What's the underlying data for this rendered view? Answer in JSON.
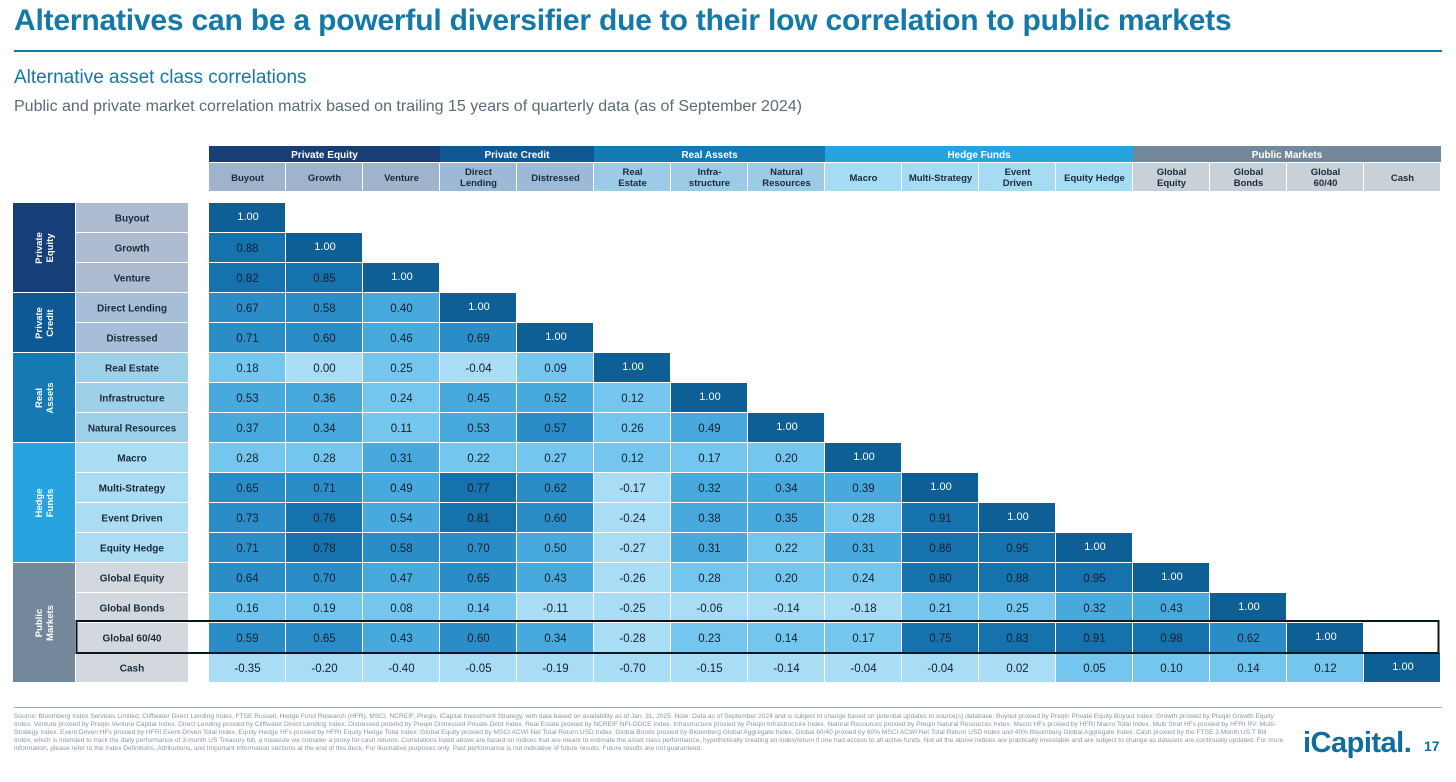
{
  "header": {
    "title": "Alternatives can be a powerful diversifier due to their low correlation to public markets",
    "subtitle": "Alternative asset class correlations",
    "caption": "Public and private market correlation matrix based on trailing 15 years of quarterly data (as of September 2024)"
  },
  "chart_data": {
    "type": "heatmap",
    "title": "",
    "groups": [
      {
        "name": "Private Equity",
        "row_label": [
          "Private",
          "Equity"
        ],
        "color": "#163e78",
        "members": [
          "Buyout",
          "Growth",
          "Venture"
        ]
      },
      {
        "name": "Private Credit",
        "row_label": [
          "Private",
          "Credit"
        ],
        "color": "#0f5896",
        "members": [
          "Direct Lending",
          "Distressed"
        ]
      },
      {
        "name": "Real Assets",
        "row_label": [
          "Real",
          "Assets"
        ],
        "color": "#1579b3",
        "members": [
          "Real Estate",
          "Infrastructure",
          "Natural Resources"
        ]
      },
      {
        "name": "Hedge Funds",
        "row_label": [
          "Hedge",
          "Funds"
        ],
        "color": "#27a3e0",
        "members": [
          "Macro",
          "Multi-Strategy",
          "Event Driven",
          "Equity Hedge"
        ]
      },
      {
        "name": "Public Markets",
        "row_label": [
          "Public",
          "Markets"
        ],
        "color": "#73889a",
        "members": [
          "Global Equity",
          "Global Bonds",
          "Global 60/40",
          "Cash"
        ]
      }
    ],
    "rows": [
      "Buyout",
      "Growth",
      "Venture",
      "Direct Lending",
      "Distressed",
      "Real Estate",
      "Infrastructure",
      "Natural Resources",
      "Macro",
      "Multi-Strategy",
      "Event Driven",
      "Equity Hedge",
      "Global Equity",
      "Global Bonds",
      "Global 60/40",
      "Cash"
    ],
    "column_labels": [
      [
        "Buyout"
      ],
      [
        "Growth"
      ],
      [
        "Venture"
      ],
      [
        "Direct",
        "Lending"
      ],
      [
        "Distressed"
      ],
      [
        "Real",
        "Estate"
      ],
      [
        "Infra-",
        "structure"
      ],
      [
        "Natural",
        "Resources"
      ],
      [
        "Macro"
      ],
      [
        "Multi-Strategy"
      ],
      [
        "Event",
        "Driven"
      ],
      [
        "Equity Hedge"
      ],
      [
        "Global",
        "Equity"
      ],
      [
        "Global",
        "Bonds"
      ],
      [
        "Global",
        "60/40"
      ],
      [
        "Cash"
      ]
    ],
    "values": [
      [
        "1.00"
      ],
      [
        "0.88",
        "1.00"
      ],
      [
        "0.82",
        "0.85",
        "1.00"
      ],
      [
        "0.67",
        "0.58",
        "0.40",
        "1.00"
      ],
      [
        "0.71",
        "0.60",
        "0.46",
        "0.69",
        "1.00"
      ],
      [
        "0.18",
        "0.00",
        "0.25",
        "-0.04",
        "0.09",
        "1.00"
      ],
      [
        "0.53",
        "0.36",
        "0.24",
        "0.45",
        "0.52",
        "0.12",
        "1.00"
      ],
      [
        "0.37",
        "0.34",
        "0.11",
        "0.53",
        "0.57",
        "0.26",
        "0.49",
        "1.00"
      ],
      [
        "0.28",
        "0.28",
        "0.31",
        "0.22",
        "0.27",
        "0.12",
        "0.17",
        "0.20",
        "1.00"
      ],
      [
        "0.65",
        "0.71",
        "0.49",
        "0.77",
        "0.62",
        "-0.17",
        "0.32",
        "0.34",
        "0.39",
        "1.00"
      ],
      [
        "0.73",
        "0.76",
        "0.54",
        "0.81",
        "0.60",
        "-0.24",
        "0.38",
        "0.35",
        "0.28",
        "0.91",
        "1.00"
      ],
      [
        "0.71",
        "0.78",
        "0.58",
        "0.70",
        "0.50",
        "-0.27",
        "0.31",
        "0.22",
        "0.31",
        "0.86",
        "0.95",
        "1.00"
      ],
      [
        "0.64",
        "0.70",
        "0.47",
        "0.65",
        "0.43",
        "-0.26",
        "0.28",
        "0.20",
        "0.24",
        "0.80",
        "0.88",
        "0.95",
        "1.00"
      ],
      [
        "0.16",
        "0.19",
        "0.08",
        "0.14",
        "-0.11",
        "-0.25",
        "-0.06",
        "-0.14",
        "-0.18",
        "0.21",
        "0.25",
        "0.32",
        "0.43",
        "1.00"
      ],
      [
        "0.59",
        "0.65",
        "0.43",
        "0.60",
        "0.34",
        "-0.28",
        "0.23",
        "0.14",
        "0.17",
        "0.75",
        "0.83",
        "0.91",
        "0.98",
        "0.62",
        "1.00"
      ],
      [
        "-0.35",
        "-0.20",
        "-0.40",
        "-0.05",
        "-0.19",
        "-0.70",
        "-0.15",
        "-0.14",
        "-0.04",
        "-0.04",
        "0.02",
        "0.05",
        "0.10",
        "0.14",
        "0.12",
        "1.00"
      ]
    ],
    "highlighted_row": "Global 60/40",
    "color_scale": {
      "diagonal": "#0d5f95",
      "high": "#1572ad",
      "mid_high": "#2b8dc7",
      "mid": "#48a9dc",
      "low": "#74c6ef",
      "lowest": "#a9ddf6"
    }
  },
  "footer": {
    "source_note": "Source: Bloomberg Index Services Limited, Cliffwater Direct Lending Index, FTSE Russell, Hedge Fund Research (HFR), MSCI, NCREIF, Preqin, iCapital Investment Strategy, with data based on availability as of Jan. 31, 2025. Note: Data as of September 2024 and is subject to change based on potential updates to source(s) database. Buyout proxied by Preqin Private Equity Buyout Index. Growth proxied by Preqin Growth Equity Index. Venture proxied by Preqin Venture Capital Index. Direct Lending proxied by Cliffwater Direct Lending Index. Distressed proxied by Preqin Distressed Private Debt Index. Real Estate proxied by NCREIF NFI-ODCE Index. Infrastructure proxied by Preqin Infrastructure Index. Natural Resources proxied by Preqin Natural Resources Index. Macro HFs proxied by HFRI Macro Total Index. Multi Strat HFs proxied by HFRI RV: Multi-Strategy Index. Event Driven HFs proxied by HFRI Event-Driven Total Index. Equity Hedge HFs proxied by HFRI Equity Hedge Total Index. Global Equity proxied by MSCI ACWI Net Total Return USD Index. Global Bonds proxied by Bloomberg Global Aggregate Index. Global 60/40 proxied by 60% MSCI ACWI Net Total Return USD Index and 40% Bloomberg Global Aggregate Index. Cash proxied by the FTSE 3 Month US T Bill Index, which is intended to track the daily performance of 3-month US Treasury bill, a measure we consider a proxy for cash returns. Correlations listed above are based on indices that are meant to estimate the asset class performance, hypothetically creating an index/return if one had access to all active funds. Not all the above indices are practically investable and are subject to change as datasets are continually updated. For more information, please refer to the Index Definitions, Attributions, and Important Information sections at the end of this deck. For illustrative purposes only. Past performance is not indicative of future results. Future results are not guaranteed.",
    "logo_text": "iCapital.",
    "page_number": "17"
  }
}
